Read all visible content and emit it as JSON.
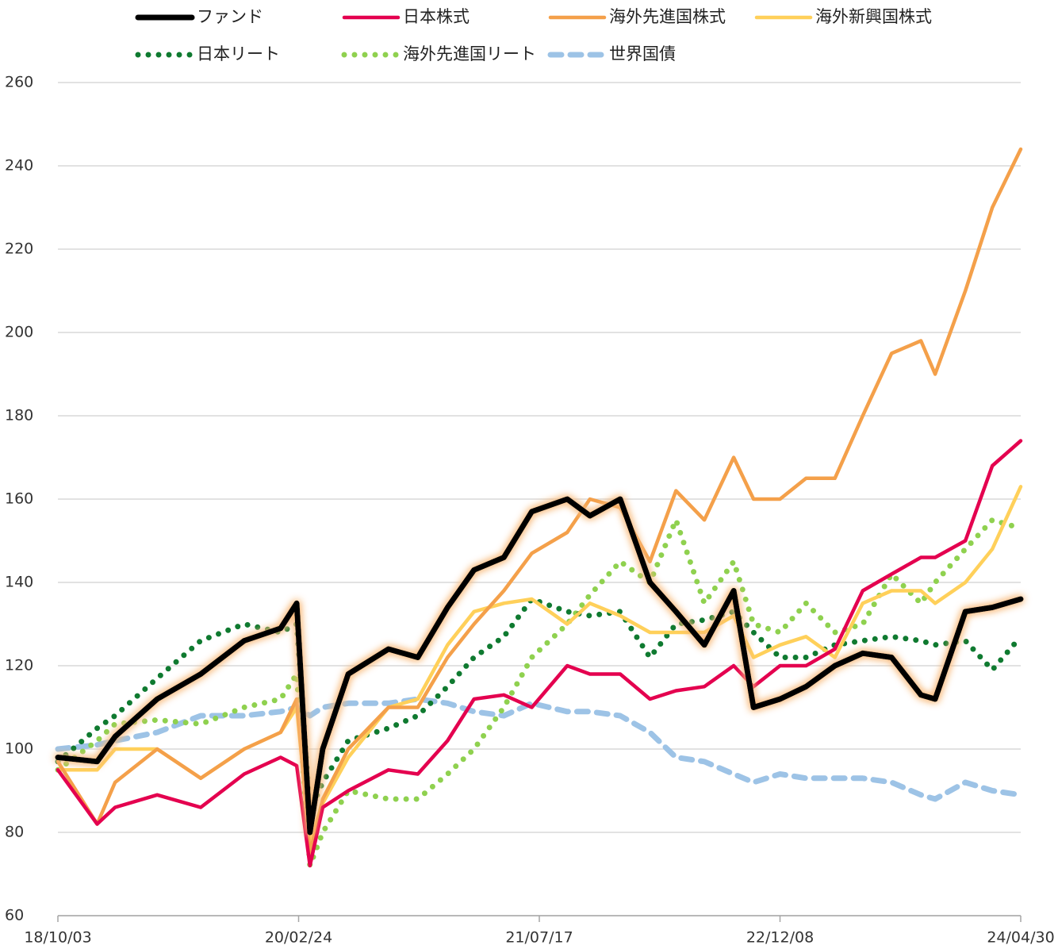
{
  "chart_data": {
    "type": "line",
    "x": [
      "18/10/03",
      "18/12/25",
      "19/02/01",
      "19/05/01",
      "19/08/01",
      "19/11/01",
      "20/01/17",
      "20/02/20",
      "20/03/19",
      "20/04/15",
      "20/06/08",
      "20/09/01",
      "20/11/02",
      "21/01/04",
      "21/03/01",
      "21/05/03",
      "21/07/01",
      "21/09/14",
      "21/11/01",
      "22/01/04",
      "22/03/08",
      "22/05/02",
      "22/07/01",
      "22/09/01",
      "22/10/13",
      "22/12/08",
      "23/02/01",
      "23/04/03",
      "23/06/01",
      "23/08/01",
      "23/10/02",
      "23/11/01",
      "24/01/04",
      "24/03/01",
      "24/04/30"
    ],
    "series": [
      {
        "name": "ファンド",
        "color": "#000000",
        "dash": "solid",
        "glow": "#f8b878",
        "values": [
          98,
          97,
          103,
          112,
          118,
          126,
          129,
          135,
          80,
          100,
          118,
          124,
          122,
          134,
          143,
          146,
          157,
          160,
          156,
          160,
          140,
          133,
          125,
          138,
          110,
          112,
          115,
          120,
          123,
          122,
          113,
          112,
          133,
          134,
          136
        ]
      },
      {
        "name": "日本株式",
        "color": "#e4004f",
        "dash": "solid",
        "values": [
          95,
          82,
          86,
          89,
          86,
          94,
          98,
          96,
          72,
          86,
          90,
          95,
          94,
          102,
          112,
          113,
          110,
          120,
          118,
          118,
          112,
          114,
          115,
          120,
          115,
          120,
          120,
          124,
          138,
          142,
          146,
          146,
          150,
          168,
          174
        ]
      },
      {
        "name": "海外先進国株式",
        "color": "#f4a04a",
        "dash": "solid",
        "values": [
          97,
          82,
          92,
          100,
          93,
          100,
          104,
          112,
          75,
          88,
          100,
          110,
          110,
          122,
          130,
          138,
          147,
          152,
          160,
          158,
          145,
          162,
          155,
          170,
          160,
          160,
          165,
          165,
          180,
          195,
          198,
          190,
          210,
          230,
          244
        ]
      },
      {
        "name": "海外新興国株式",
        "color": "#ffd05a",
        "dash": "solid",
        "values": [
          95,
          95,
          100,
          100,
          93,
          100,
          104,
          110,
          78,
          87,
          98,
          110,
          112,
          125,
          133,
          135,
          136,
          130,
          135,
          132,
          128,
          128,
          128,
          132,
          122,
          125,
          127,
          122,
          135,
          138,
          138,
          135,
          140,
          148,
          163
        ]
      },
      {
        "name": "日本リート",
        "color": "#0f7a30",
        "dash": "dotted",
        "values": [
          97,
          105,
          108,
          117,
          126,
          130,
          128,
          130,
          85,
          92,
          102,
          105,
          108,
          115,
          122,
          127,
          136,
          133,
          132,
          133,
          122,
          130,
          131,
          133,
          128,
          122,
          122,
          125,
          126,
          127,
          126,
          125,
          126,
          119,
          127
        ]
      },
      {
        "name": "海外先進国リート",
        "color": "#8fd14f",
        "dash": "dotted",
        "values": [
          95,
          102,
          106,
          107,
          106,
          110,
          112,
          118,
          72,
          80,
          90,
          88,
          88,
          94,
          100,
          110,
          122,
          130,
          137,
          145,
          140,
          155,
          135,
          145,
          130,
          128,
          135,
          128,
          130,
          142,
          135,
          140,
          148,
          155,
          153
        ]
      },
      {
        "name": "世界国債",
        "color": "#9dc3e6",
        "dash": "dashed",
        "values": [
          100,
          101,
          102,
          104,
          108,
          108,
          109,
          110,
          108,
          110,
          111,
          111,
          112,
          111,
          109,
          108,
          111,
          109,
          109,
          108,
          104,
          98,
          97,
          94,
          92,
          94,
          93,
          93,
          93,
          92,
          89,
          88,
          92,
          90,
          89
        ]
      }
    ],
    "xlim": [
      "18/10/03",
      "24/04/30"
    ],
    "xticks": [
      "18/10/03",
      "20/02/24",
      "21/07/17",
      "22/12/08",
      "24/04/30"
    ],
    "ylim": [
      60,
      260
    ],
    "yticks": [
      60,
      80,
      100,
      120,
      140,
      160,
      180,
      200,
      220,
      240,
      260
    ],
    "grid": true
  }
}
